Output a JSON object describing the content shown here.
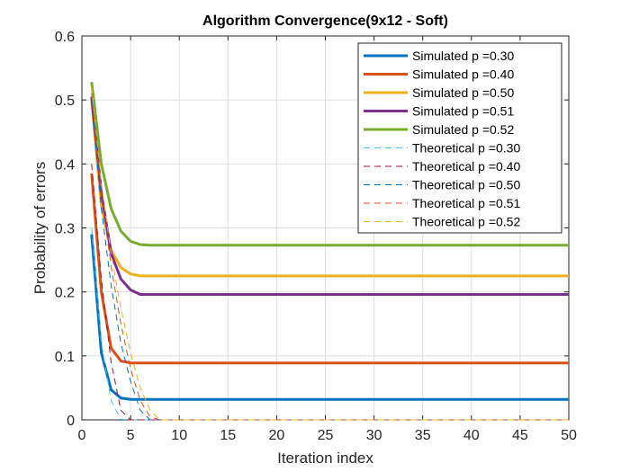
{
  "chart_data": {
    "type": "line",
    "title": "Algorithm Convergence(9x12 - Soft)",
    "xlabel": "Iteration index",
    "ylabel": "Probability of errors",
    "xlim": [
      0,
      50
    ],
    "ylim": [
      0,
      0.6
    ],
    "xticks": [
      "0",
      "5",
      "10",
      "15",
      "20",
      "25",
      "30",
      "35",
      "40",
      "45",
      "50"
    ],
    "yticks": [
      "0",
      "0.1",
      "0.2",
      "0.3",
      "0.4",
      "0.5",
      "0.6"
    ],
    "grid": true,
    "legend_position": "top-right",
    "series": [
      {
        "name": "Simulated p =0.30",
        "style": "solid",
        "color": "#0072BD",
        "points": [
          [
            1,
            0.29
          ],
          [
            2,
            0.105
          ],
          [
            3,
            0.047
          ],
          [
            4,
            0.034
          ],
          [
            5,
            0.032
          ],
          [
            6,
            0.032
          ],
          [
            50,
            0.032
          ]
        ]
      },
      {
        "name": "Simulated p =0.40",
        "style": "solid",
        "color": "#D95319",
        "points": [
          [
            1,
            0.385
          ],
          [
            2,
            0.2
          ],
          [
            3,
            0.112
          ],
          [
            4,
            0.092
          ],
          [
            5,
            0.089
          ],
          [
            6,
            0.089
          ],
          [
            50,
            0.089
          ]
        ]
      },
      {
        "name": "Simulated p =0.50",
        "style": "solid",
        "color": "#EDB120",
        "points": [
          [
            1,
            0.5
          ],
          [
            2,
            0.335
          ],
          [
            3,
            0.265
          ],
          [
            4,
            0.238
          ],
          [
            5,
            0.228
          ],
          [
            6,
            0.225
          ],
          [
            50,
            0.225
          ]
        ]
      },
      {
        "name": "Simulated p =0.51",
        "style": "solid",
        "color": "#7E2F8E",
        "points": [
          [
            1,
            0.505
          ],
          [
            2,
            0.355
          ],
          [
            3,
            0.26
          ],
          [
            4,
            0.22
          ],
          [
            5,
            0.203
          ],
          [
            6,
            0.196
          ],
          [
            50,
            0.196
          ]
        ]
      },
      {
        "name": "Simulated p =0.52",
        "style": "solid",
        "color": "#77AC30",
        "points": [
          [
            1,
            0.528
          ],
          [
            2,
            0.4
          ],
          [
            3,
            0.33
          ],
          [
            4,
            0.295
          ],
          [
            5,
            0.279
          ],
          [
            6,
            0.274
          ],
          [
            7,
            0.273
          ],
          [
            50,
            0.273
          ]
        ]
      },
      {
        "name": "Theoretical p =0.30",
        "style": "dashed",
        "color": "#4DBEEE",
        "points": [
          [
            1,
            0.3
          ],
          [
            2,
            0.12
          ],
          [
            3,
            0.03
          ],
          [
            4,
            0.001
          ],
          [
            5,
            0
          ],
          [
            50,
            0
          ]
        ]
      },
      {
        "name": "Theoretical p =0.40",
        "style": "dashed",
        "color": "#A2142F",
        "points": [
          [
            1,
            0.4
          ],
          [
            2,
            0.22
          ],
          [
            3,
            0.09
          ],
          [
            4,
            0.015
          ],
          [
            5,
            0
          ],
          [
            50,
            0
          ]
        ]
      },
      {
        "name": "Theoretical p =0.50",
        "style": "dashed",
        "color": "#0072BD",
        "points": [
          [
            1,
            0.5
          ],
          [
            2,
            0.33
          ],
          [
            3,
            0.21
          ],
          [
            4,
            0.12
          ],
          [
            5,
            0.06
          ],
          [
            6,
            0.015
          ],
          [
            7,
            0
          ],
          [
            50,
            0
          ]
        ]
      },
      {
        "name": "Theoretical p =0.51",
        "style": "dashed",
        "color": "#D95319",
        "points": [
          [
            1,
            0.51
          ],
          [
            2,
            0.35
          ],
          [
            3,
            0.24
          ],
          [
            4,
            0.15
          ],
          [
            5,
            0.08
          ],
          [
            6,
            0.03
          ],
          [
            7,
            0.005
          ],
          [
            8,
            0
          ],
          [
            50,
            0
          ]
        ]
      },
      {
        "name": "Theoretical p =0.52",
        "style": "dashed",
        "color": "#EDB120",
        "points": [
          [
            1,
            0.52
          ],
          [
            2,
            0.37
          ],
          [
            3,
            0.26
          ],
          [
            4,
            0.175
          ],
          [
            5,
            0.105
          ],
          [
            6,
            0.05
          ],
          [
            7,
            0.015
          ],
          [
            8,
            0
          ],
          [
            50,
            0
          ]
        ]
      }
    ]
  }
}
